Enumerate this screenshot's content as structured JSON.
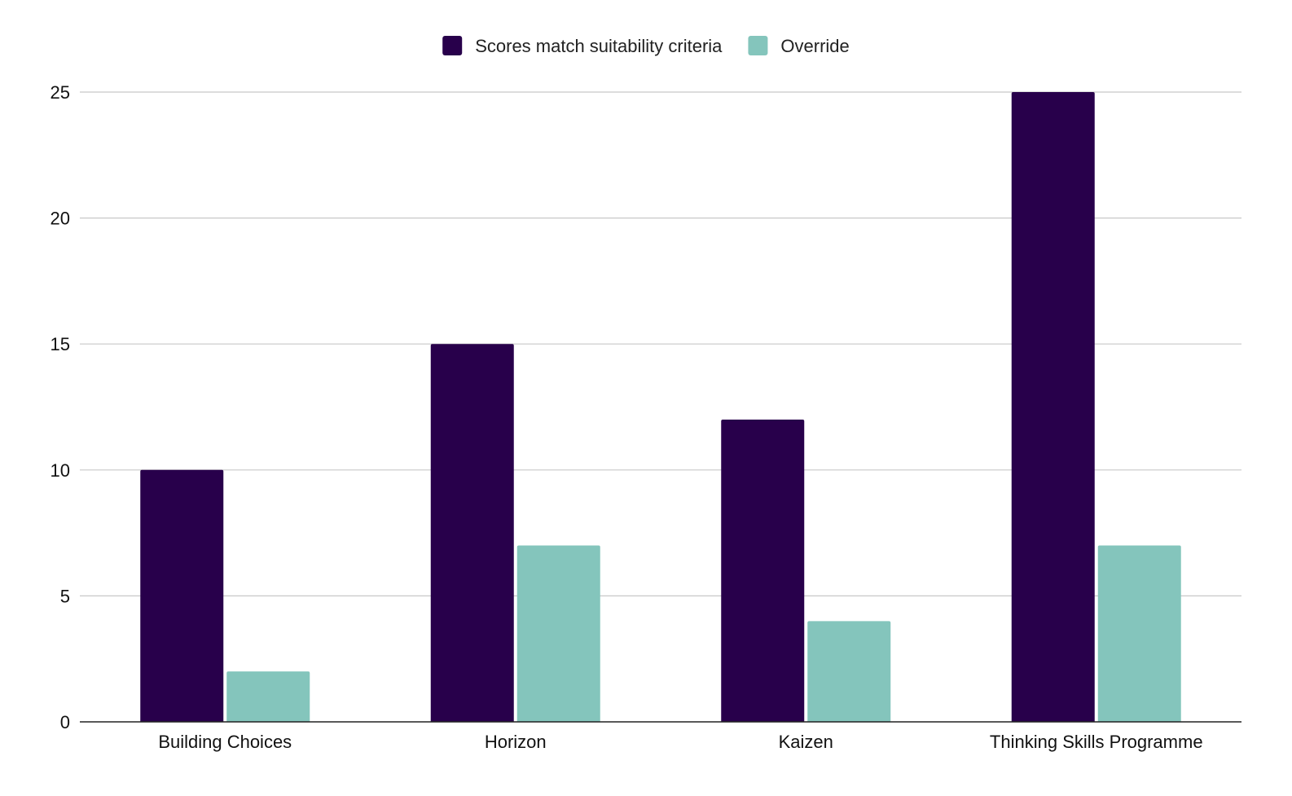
{
  "chart_data": {
    "type": "bar",
    "title": "",
    "xlabel": "",
    "ylabel": "",
    "categories": [
      "Building Choices",
      "Horizon",
      "Kaizen",
      "Thinking Skills Programme"
    ],
    "series": [
      {
        "name": "Scores match suitability criteria",
        "color": "#28004b",
        "values": [
          10,
          15,
          12,
          25
        ]
      },
      {
        "name": "Override",
        "color": "#84c5bc",
        "values": [
          2,
          7,
          4,
          7
        ]
      }
    ],
    "ylim": [
      0,
      25
    ],
    "yticks": [
      0,
      5,
      10,
      15,
      20,
      25
    ],
    "grid": true,
    "legend": "top-center"
  },
  "colors": {
    "gridline": "#c8c8c8",
    "axis": "#222222",
    "text": "#111111"
  }
}
